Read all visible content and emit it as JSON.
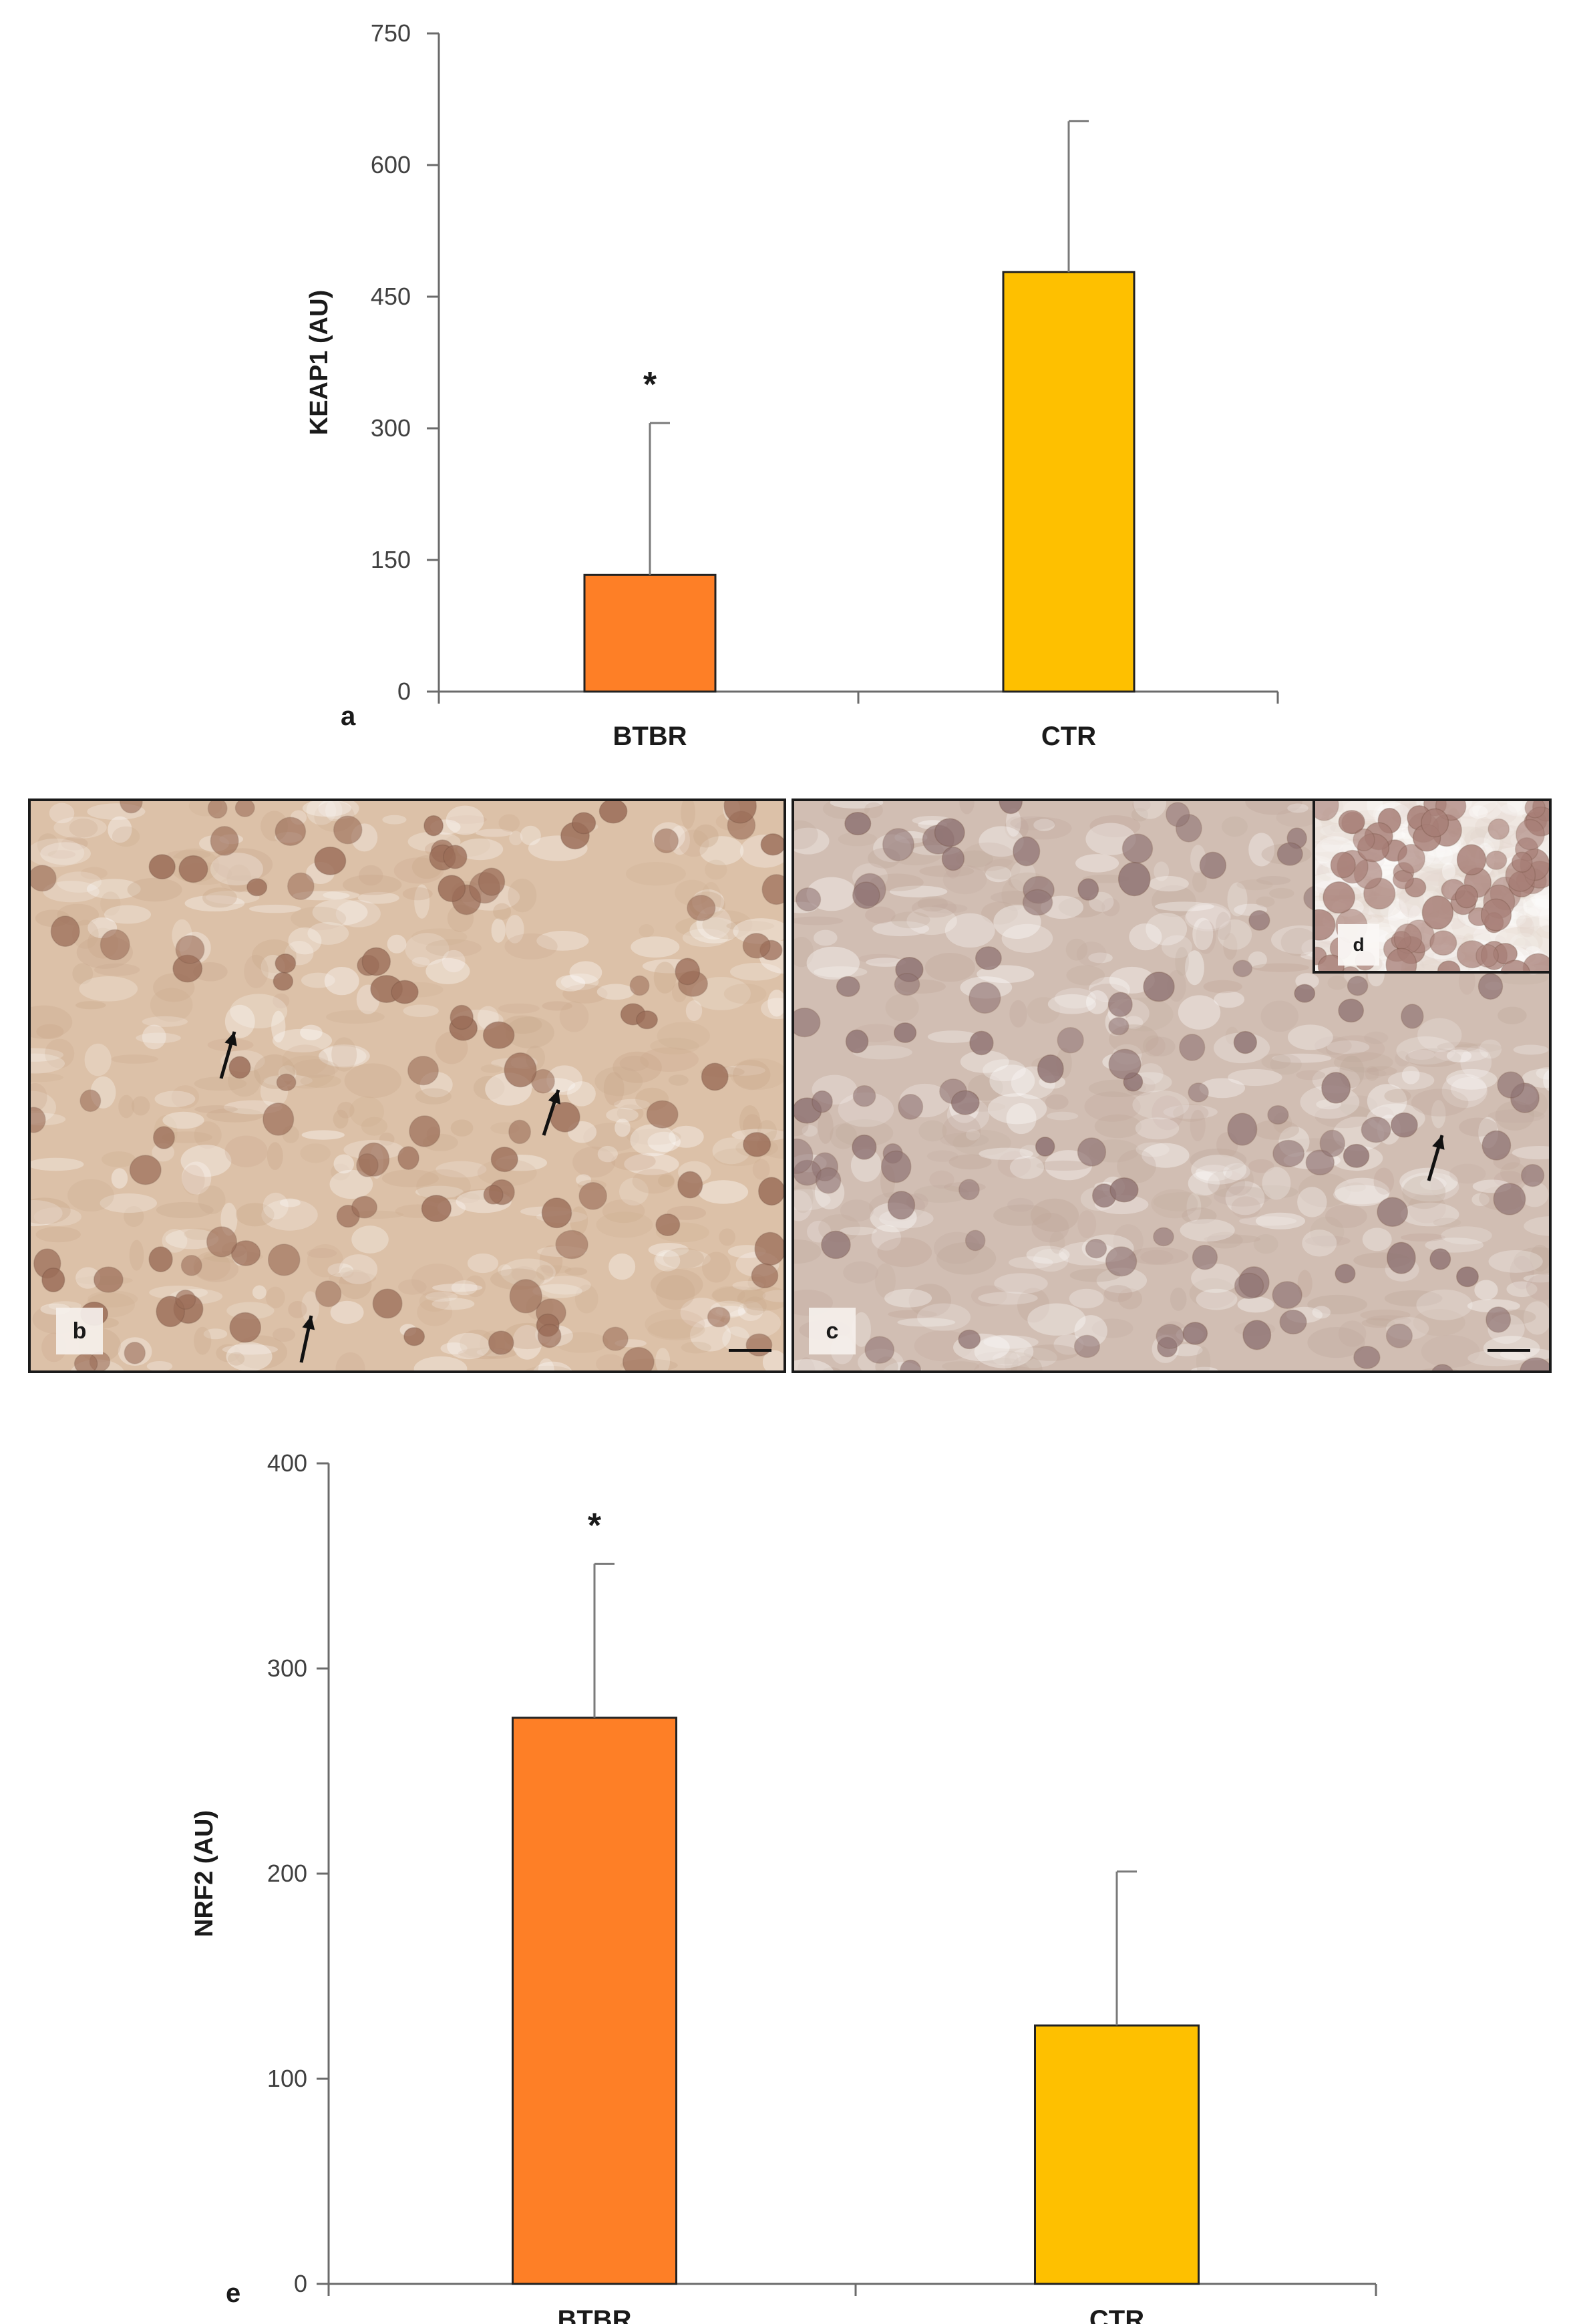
{
  "chart_data": [
    {
      "panel": "a",
      "type": "bar",
      "categories": [
        "BTBR",
        "CTR"
      ],
      "values": [
        133,
        478
      ],
      "errors": [
        173,
        172
      ],
      "significance": [
        "*",
        ""
      ],
      "ylabel": "KEAP1 (AU)",
      "ylim": [
        0,
        750
      ],
      "yticks": [
        "0",
        "150",
        "300",
        "450",
        "600",
        "750"
      ],
      "colors": [
        "#fe7f26",
        "#fec000"
      ],
      "grid": false
    },
    {
      "panel": "e",
      "type": "bar",
      "categories": [
        "BTBR",
        "CTR"
      ],
      "values": [
        276,
        126
      ],
      "errors": [
        75,
        75
      ],
      "significance": [
        "*",
        ""
      ],
      "ylabel": "NRF2 (AU)",
      "ylim": [
        0,
        400
      ],
      "yticks": [
        "0",
        "100",
        "200",
        "300",
        "400"
      ],
      "colors": [
        "#fe7f26",
        "#fec000"
      ],
      "grid": false
    }
  ],
  "micrographs": {
    "b": {
      "label": "b",
      "description_icon": "micrograph-btbr"
    },
    "c": {
      "label": "c",
      "description_icon": "micrograph-ctr"
    },
    "d": {
      "label": "d",
      "description_icon": "micrograph-inset"
    }
  }
}
